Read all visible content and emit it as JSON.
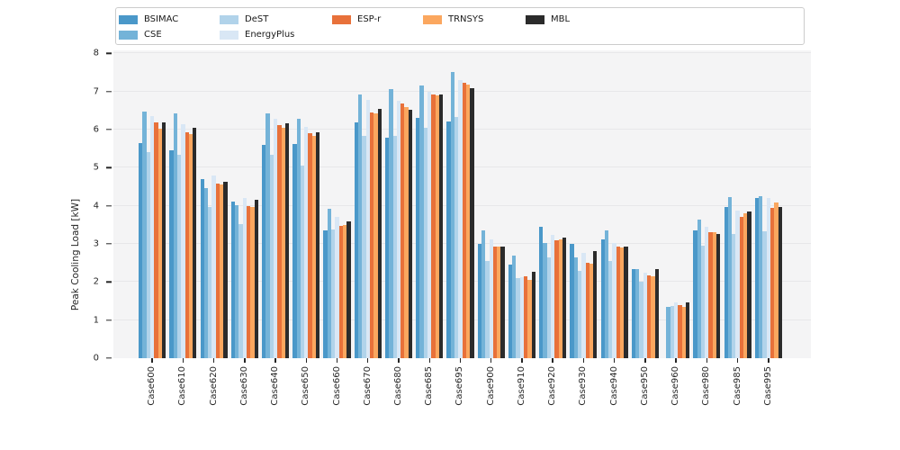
{
  "figure": {
    "ylabel": "Peak Cooling Load [kW]"
  },
  "legend": {
    "items": [
      {
        "label": "BSIMAC",
        "color": "#4a98c9",
        "x": 3,
        "row": 0
      },
      {
        "label": "CSE",
        "color": "#74b3d8",
        "x": 3,
        "row": 1
      },
      {
        "label": "DeST",
        "color": "#b1d3ea",
        "x": 115,
        "row": 0
      },
      {
        "label": "EnergyPlus",
        "color": "#d9e7f5",
        "x": 115,
        "row": 1
      },
      {
        "label": "ESP-r",
        "color": "#e8713a",
        "x": 240,
        "row": 0
      },
      {
        "label": "TRNSYS",
        "color": "#fba75f",
        "x": 341,
        "row": 0
      },
      {
        "label": "MBL",
        "color": "#2b2b2b",
        "x": 455,
        "row": 0
      }
    ]
  },
  "chart_data": {
    "type": "bar",
    "title": "",
    "xlabel": "",
    "ylabel": "Peak Cooling Load [kW]",
    "ylim": [
      0,
      8
    ],
    "yticks": [
      0,
      1,
      2,
      3,
      4,
      5,
      6,
      7,
      8
    ],
    "grid": true,
    "legend_position": "top",
    "plot_background": "#f4f4f5",
    "categories": [
      "Case600",
      "Case610",
      "Case620",
      "Case630",
      "Case640",
      "Case650",
      "Case660",
      "Case670",
      "Case680",
      "Case685",
      "Case695",
      "Case900",
      "Case910",
      "Case920",
      "Case930",
      "Case940",
      "Case950",
      "Case960",
      "Case980",
      "Case985",
      "Case995"
    ],
    "series": [
      {
        "name": "BSIMAC",
        "color": "#4a98c9",
        "values": [
          5.65,
          5.46,
          4.69,
          4.11,
          5.61,
          5.63,
          3.35,
          6.2,
          5.78,
          6.3,
          6.22,
          3.0,
          2.46,
          3.46,
          3.0,
          3.13,
          2.34,
          null,
          3.35,
          3.98,
          4.2
        ]
      },
      {
        "name": "CSE",
        "color": "#74b3d8",
        "values": [
          6.48,
          6.43,
          4.46,
          4.02,
          6.43,
          6.28,
          3.92,
          6.92,
          7.06,
          7.15,
          7.52,
          3.35,
          2.69,
          3.03,
          2.65,
          3.35,
          2.34,
          1.35,
          3.65,
          4.24,
          4.26
        ]
      },
      {
        "name": "DeST",
        "color": "#b1d3ea",
        "values": [
          5.42,
          5.34,
          3.96,
          3.53,
          5.35,
          5.05,
          3.38,
          5.83,
          5.83,
          6.05,
          6.33,
          2.55,
          2.1,
          2.65,
          2.3,
          2.55,
          2.0,
          1.38,
          2.95,
          3.25,
          3.32
        ]
      },
      {
        "name": "EnergyPlus",
        "color": "#d9e7f5",
        "values": [
          6.35,
          6.14,
          4.8,
          4.2,
          6.28,
          6.08,
          3.72,
          6.78,
          6.75,
          7.0,
          7.3,
          3.13,
          2.12,
          3.24,
          2.76,
          3.03,
          2.24,
          1.46,
          3.45,
          3.87,
          4.2
        ]
      },
      {
        "name": "ESP-r",
        "color": "#e8713a",
        "values": [
          6.19,
          5.92,
          4.59,
          3.99,
          6.12,
          5.9,
          3.48,
          6.45,
          6.68,
          6.92,
          7.24,
          2.92,
          2.16,
          3.1,
          2.5,
          2.92,
          2.18,
          1.4,
          3.31,
          3.72,
          3.95
        ]
      },
      {
        "name": "TRNSYS",
        "color": "#fba75f",
        "values": [
          6.03,
          5.88,
          4.57,
          3.97,
          6.05,
          5.83,
          3.5,
          6.42,
          6.6,
          6.9,
          7.18,
          2.93,
          2.05,
          3.12,
          2.48,
          2.9,
          2.14,
          1.35,
          3.3,
          3.8,
          4.08
        ]
      },
      {
        "name": "MBL",
        "color": "#2b2b2b",
        "values": [
          6.2,
          6.05,
          4.63,
          4.16,
          6.17,
          5.92,
          3.6,
          6.55,
          6.52,
          6.93,
          7.08,
          2.92,
          2.27,
          3.17,
          2.82,
          2.93,
          2.35,
          1.46,
          3.26,
          3.84,
          3.98
        ]
      }
    ]
  }
}
